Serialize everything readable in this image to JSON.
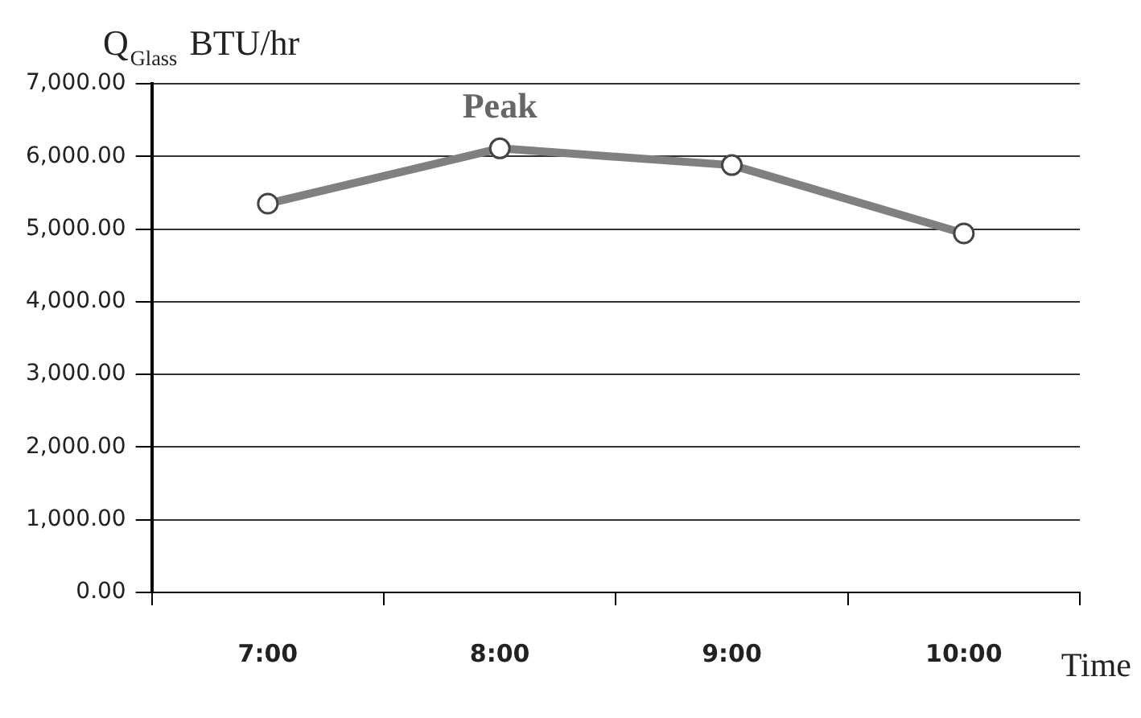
{
  "chart_data": {
    "type": "line",
    "ylabel": "Q$_{Glass}$ BTU/hr",
    "xlabel": "Time",
    "categories": [
      "7:00",
      "8:00",
      "9:00",
      "10:00"
    ],
    "series": [
      {
        "color": "#808080",
        "values": [
          5350,
          6110,
          5880,
          4940
        ]
      }
    ],
    "ylim": [
      0,
      7000
    ],
    "yticks": [
      {
        "value": 0,
        "label": "0.00"
      },
      {
        "value": 1000,
        "label": "1,000.00"
      },
      {
        "value": 2000,
        "label": "2,000.00"
      },
      {
        "value": 3000,
        "label": "3,000.00"
      },
      {
        "value": 4000,
        "label": "4,000.00"
      },
      {
        "value": 5000,
        "label": "5,000.00"
      },
      {
        "value": 6000,
        "label": "6,000.00"
      },
      {
        "value": 7000,
        "label": "7,000.00"
      }
    ],
    "grid": "y",
    "legend": false,
    "marker": "circle",
    "line_style": "solid",
    "annotations": [
      {
        "text": "Peak",
        "x": "8:00",
        "y": 6110
      }
    ]
  }
}
